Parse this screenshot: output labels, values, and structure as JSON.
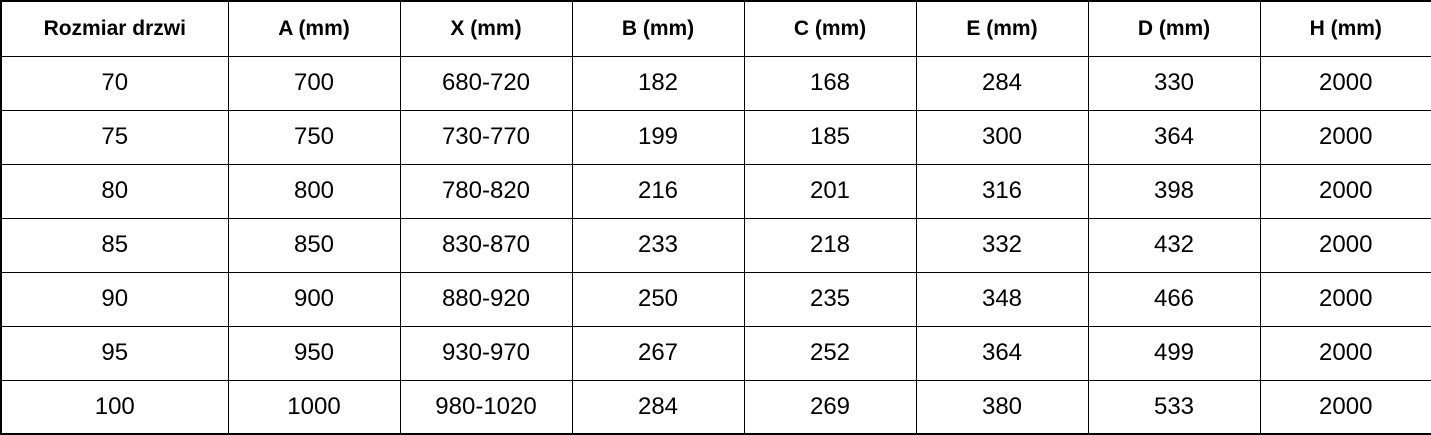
{
  "colors": {
    "border": "#000000",
    "text": "#000000",
    "background": "#ffffff"
  },
  "chart_data": {
    "type": "table",
    "title": "",
    "columns": [
      "Rozmiar drzwi",
      "A (mm)",
      "X (mm)",
      "B (mm)",
      "C (mm)",
      "E (mm)",
      "D (mm)",
      "H (mm)"
    ],
    "rows": [
      [
        "70",
        "700",
        "680-720",
        "182",
        "168",
        "284",
        "330",
        "2000"
      ],
      [
        "75",
        "750",
        "730-770",
        "199",
        "185",
        "300",
        "364",
        "2000"
      ],
      [
        "80",
        "800",
        "780-820",
        "216",
        "201",
        "316",
        "398",
        "2000"
      ],
      [
        "85",
        "850",
        "830-870",
        "233",
        "218",
        "332",
        "432",
        "2000"
      ],
      [
        "90",
        "900",
        "880-920",
        "250",
        "235",
        "348",
        "466",
        "2000"
      ],
      [
        "95",
        "950",
        "930-970",
        "267",
        "252",
        "364",
        "499",
        "2000"
      ],
      [
        "100",
        "1000",
        "980-1020",
        "284",
        "269",
        "380",
        "533",
        "2000"
      ]
    ]
  }
}
